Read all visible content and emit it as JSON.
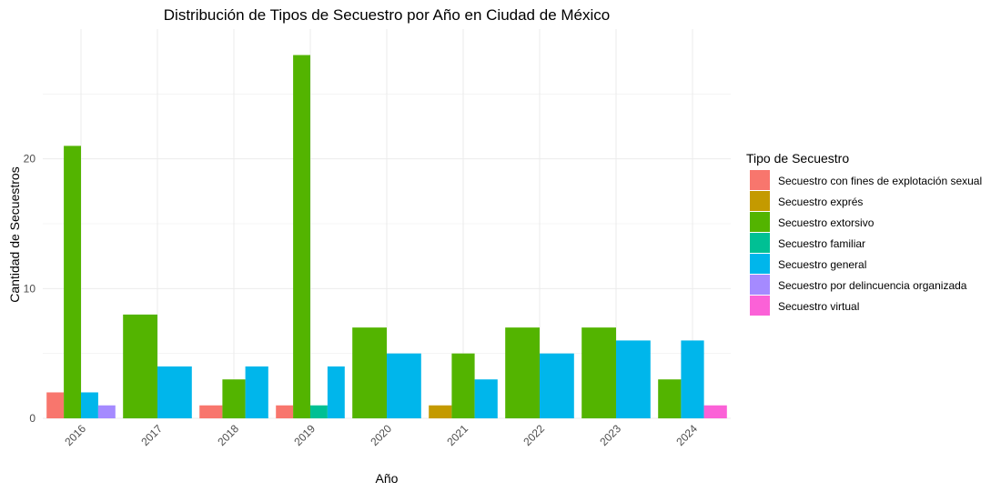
{
  "chart_data": {
    "type": "bar",
    "title": "Distribución de Tipos de Secuestro por Año en Ciudad de México",
    "xlabel": "Año",
    "ylabel": "Cantidad de Secuestros",
    "categories": [
      "2016",
      "2017",
      "2018",
      "2019",
      "2020",
      "2021",
      "2022",
      "2023",
      "2024"
    ],
    "ylim": [
      0,
      30
    ],
    "yticks": [
      0,
      10,
      20
    ],
    "grid": true,
    "legend": {
      "title": "Tipo de Secuestro",
      "placement": "right"
    },
    "series": [
      {
        "name": "Secuestro con fines de explotación sexual",
        "color": "#F8766D",
        "values": [
          2,
          null,
          1,
          1,
          null,
          null,
          null,
          null,
          null
        ]
      },
      {
        "name": "Secuestro exprés",
        "color": "#C49A00",
        "values": [
          null,
          null,
          null,
          null,
          null,
          1,
          null,
          null,
          null
        ]
      },
      {
        "name": "Secuestro extorsivo",
        "color": "#53B400",
        "values": [
          21,
          8,
          3,
          28,
          7,
          5,
          7,
          7,
          3
        ]
      },
      {
        "name": "Secuestro familiar",
        "color": "#00C094",
        "values": [
          null,
          null,
          null,
          1,
          null,
          null,
          null,
          null,
          null
        ]
      },
      {
        "name": "Secuestro general",
        "color": "#00B6EB",
        "values": [
          2,
          4,
          4,
          4,
          5,
          3,
          5,
          6,
          6
        ]
      },
      {
        "name": "Secuestro por delincuencia organizada",
        "color": "#A58AFF",
        "values": [
          1,
          null,
          null,
          null,
          null,
          null,
          null,
          null,
          null
        ]
      },
      {
        "name": "Secuestro virtual",
        "color": "#FB61D7",
        "values": [
          null,
          null,
          null,
          null,
          null,
          null,
          null,
          null,
          1
        ]
      }
    ]
  }
}
